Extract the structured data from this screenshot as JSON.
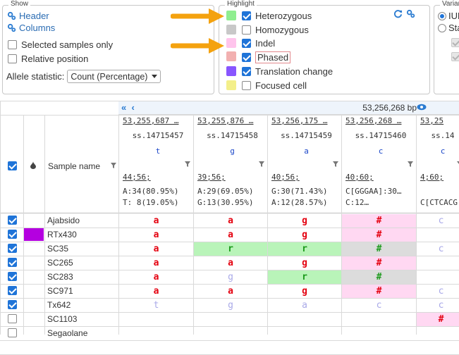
{
  "show_panel": {
    "legend": "Show",
    "header_link": "Header",
    "columns_link": "Columns",
    "selected_samples_only": {
      "label": "Selected samples only",
      "checked": false
    },
    "relative_position": {
      "label": "Relative position",
      "checked": false
    },
    "allele_statistic_label": "Allele statistic:",
    "allele_statistic_value": "Count (Percentage)"
  },
  "highlight_panel": {
    "legend": "Highlight",
    "items": [
      {
        "label": "Heterozygous",
        "checked": true,
        "color": "#90ee90"
      },
      {
        "label": "Homozygous",
        "checked": false,
        "color": "#c8c8c8"
      },
      {
        "label": "Indel",
        "checked": true,
        "color": "#ffc4ec"
      },
      {
        "label": "Phased",
        "checked": true,
        "color": "#f2b0b0"
      },
      {
        "label": "Translation change",
        "checked": true,
        "color": "#8855ff"
      },
      {
        "label": "Focused cell",
        "checked": false,
        "color": "#f3ef8a"
      }
    ],
    "icons": [
      "refresh-icon",
      "settings-icon"
    ]
  },
  "variant_panel": {
    "legend": "Varian",
    "options": [
      {
        "label": "IUP",
        "selected": true
      },
      {
        "label": "Sta",
        "selected": false
      }
    ]
  },
  "grid": {
    "position_label": "53,256,268 bp",
    "sample_name_header": "Sample name",
    "columns": [
      {
        "position": "53,255,687 …",
        "id": "ss.14715457",
        "allele": "t",
        "count_summary": "44;56;",
        "stats": [
          "A:34(80.95%)",
          "T: 8(19.05%)"
        ]
      },
      {
        "position": "53,255,876 …",
        "id": "ss.14715458",
        "allele": "g",
        "count_summary": "39;56;",
        "stats": [
          "A:29(69.05%)",
          "G:13(30.95%)"
        ]
      },
      {
        "position": "53,256,175 …",
        "id": "ss.14715459",
        "allele": "a",
        "count_summary": "40;56;",
        "stats": [
          "G:30(71.43%)",
          "A:12(28.57%)"
        ]
      },
      {
        "position": "53,256,268 …",
        "id": "ss.14715460",
        "allele": "c",
        "count_summary": "40;60;",
        "stats": [
          "C[GGGAA]:30…",
          "C:12…"
        ]
      },
      {
        "position": "53,25",
        "id": "ss.14",
        "allele": "c",
        "count_summary": "4;60;",
        "stats": [
          "",
          "C[CTCACG"
        ]
      }
    ],
    "rows": [
      {
        "name": "Ajabsido",
        "checked": true,
        "color_tag": "",
        "cells": [
          "a",
          "a",
          "g",
          "#",
          "c"
        ]
      },
      {
        "name": "RTx430",
        "checked": true,
        "color_tag": "#b400e0",
        "cells": [
          "a",
          "a",
          "g",
          "#",
          ""
        ]
      },
      {
        "name": "SC35",
        "checked": true,
        "color_tag": "",
        "cells": [
          "a",
          "r",
          "r",
          "#",
          "c"
        ]
      },
      {
        "name": "SC265",
        "checked": true,
        "color_tag": "",
        "cells": [
          "a",
          "a",
          "g",
          "#",
          ""
        ]
      },
      {
        "name": "SC283",
        "checked": true,
        "color_tag": "",
        "cells": [
          "a",
          "g",
          "r",
          "#",
          ""
        ]
      },
      {
        "name": "SC971",
        "checked": true,
        "color_tag": "",
        "cells": [
          "a",
          "a",
          "g",
          "#",
          "c"
        ]
      },
      {
        "name": "Tx642",
        "checked": true,
        "color_tag": "",
        "cells": [
          "t",
          "g",
          "a",
          "c",
          "c"
        ]
      },
      {
        "name": "SC1103",
        "checked": false,
        "color_tag": "",
        "cells": [
          "",
          "",
          "",
          "",
          "#"
        ]
      },
      {
        "name": "Segaolane",
        "checked": false,
        "color_tag": "",
        "cells": [
          "",
          "",
          "",
          "",
          ""
        ]
      }
    ]
  }
}
